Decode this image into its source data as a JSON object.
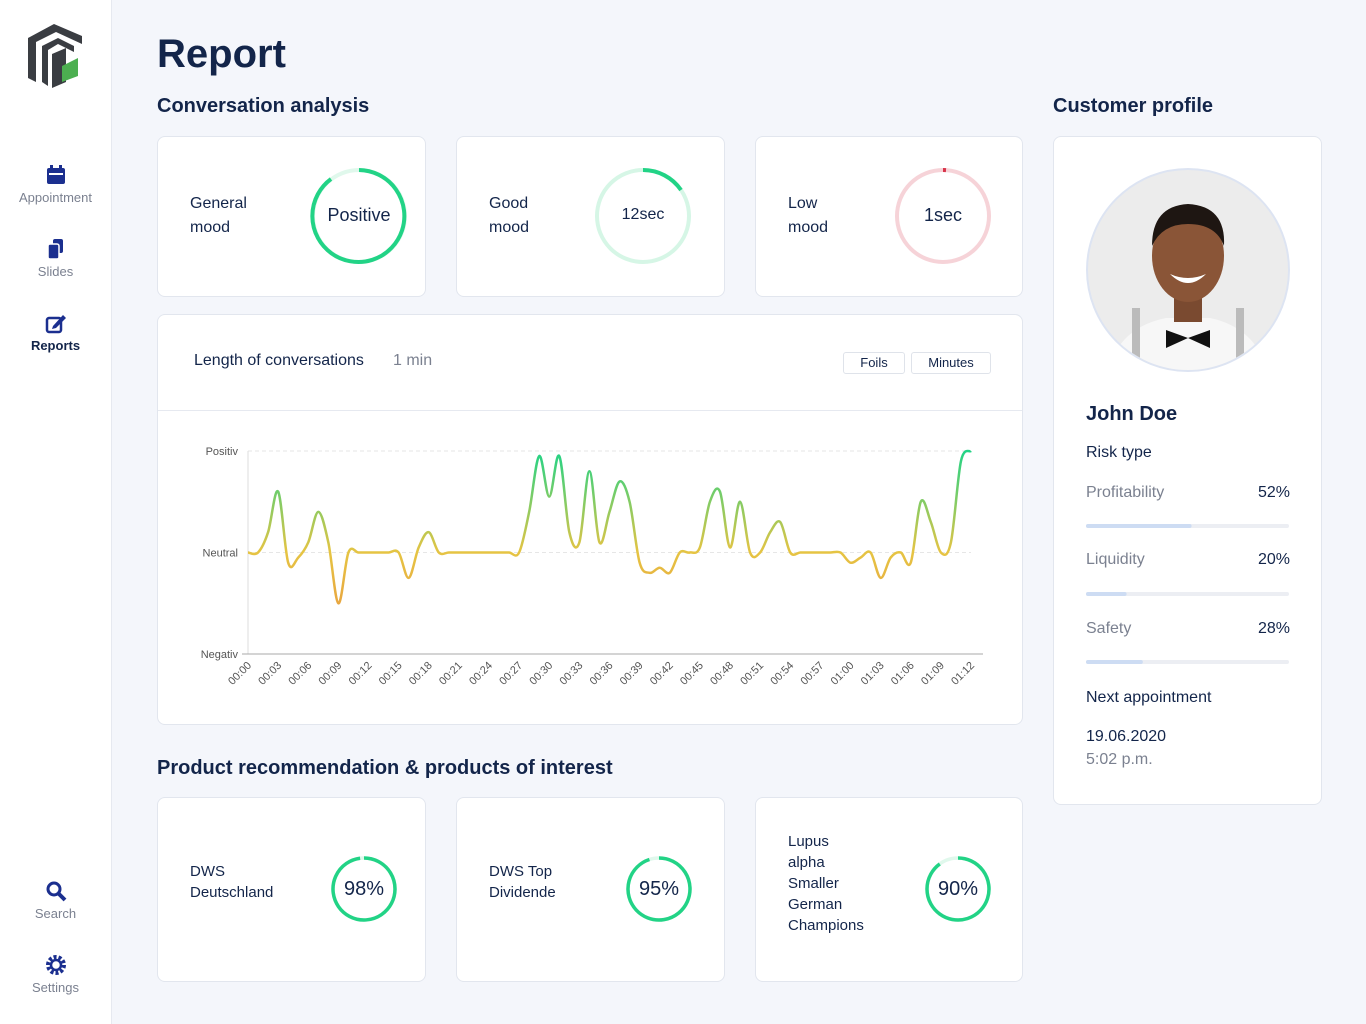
{
  "sidebar": {
    "items": [
      {
        "label": "Appointment"
      },
      {
        "label": "Slides"
      },
      {
        "label": "Reports"
      },
      {
        "label": "Search"
      },
      {
        "label": "Settings"
      }
    ]
  },
  "header": {
    "title": "Report"
  },
  "conversation_analysis": {
    "title": "Conversation analysis",
    "cards": [
      {
        "label": "General mood",
        "value_text": "Positive"
      },
      {
        "label": "Good mood",
        "value_text": "12sec"
      },
      {
        "label": "Low mood",
        "value_text": "1sec"
      }
    ]
  },
  "chart_data": {
    "type": "line",
    "title": "Length of conversations",
    "subtitle": "1 min",
    "buttons": [
      "Foils",
      "Minutes"
    ],
    "categories": [
      "00:00",
      null,
      null,
      "00:03",
      null,
      null,
      "00:06",
      null,
      null,
      "00:09",
      null,
      null,
      "00:12",
      null,
      null,
      "00:15",
      null,
      null,
      "00:18",
      null,
      null,
      "00:21",
      null,
      null,
      "00:24",
      null,
      null,
      "00:27",
      null,
      null,
      "00:30",
      null,
      null,
      "00:33",
      null,
      null,
      "00:36",
      null,
      null,
      "00:39",
      null,
      null,
      "00:42",
      null,
      null,
      "00:45",
      null,
      null,
      "00:48",
      null,
      null,
      "00:51",
      null,
      null,
      "00:54",
      null,
      null,
      "00:57",
      null,
      null,
      "01:00",
      null,
      null,
      "01:03",
      null,
      null,
      "01:06",
      null,
      null,
      "01:09",
      null,
      null,
      "01:12"
    ],
    "values": [
      0,
      0,
      0.2,
      0.6,
      -0.1,
      -0.05,
      0.1,
      0.4,
      0.1,
      -0.5,
      0,
      0,
      0,
      0,
      0,
      0,
      -0.25,
      0.05,
      0.2,
      0,
      0,
      0,
      0,
      0,
      0,
      0,
      0,
      0,
      0.4,
      0.95,
      0.55,
      0.95,
      0.2,
      0.1,
      0.8,
      0.1,
      0.4,
      0.7,
      0.5,
      -0.1,
      -0.2,
      -0.15,
      -0.2,
      0,
      0,
      0.05,
      0.5,
      0.6,
      0.05,
      0.5,
      0,
      0,
      0.2,
      0.3,
      0,
      0,
      0,
      0,
      0,
      0,
      -0.1,
      -0.05,
      0,
      -0.25,
      -0.05,
      0,
      -0.1,
      0.5,
      0.3,
      0,
      0.1,
      0.9,
      1
    ],
    "gradient": [
      "#22d386",
      "#e6c443",
      "#ea8a3c"
    ],
    "ylim": [
      -1,
      1
    ],
    "yticks": [
      {
        "value": -1,
        "label": "Negativ"
      },
      {
        "value": 0,
        "label": "Neutral"
      },
      {
        "value": 1,
        "label": "Positiv"
      }
    ],
    "grid": true
  },
  "products": {
    "title": "Product recommendation & products of interest",
    "items": [
      {
        "name": "DWS Deutschland",
        "value": 98,
        "value_label": "98%"
      },
      {
        "name": "DWS Top Dividende",
        "value": 95,
        "value_label": "95%"
      },
      {
        "name": "Lupus alpha Smaller German Champions",
        "value": 90,
        "value_label": "90%"
      }
    ]
  },
  "customer_profile": {
    "title": "Customer profile",
    "name": "John Doe",
    "risk_type_label": "Risk type",
    "risks": [
      {
        "label": "Profitability",
        "value": 52,
        "value_label": "52%"
      },
      {
        "label": "Liquidity",
        "value": 20,
        "value_label": "20%"
      },
      {
        "label": "Safety",
        "value": 28,
        "value_label": "28%"
      }
    ],
    "next_appointment_label": "Next appointment",
    "date": "19.06.2020",
    "time": "5:02 p.m."
  }
}
